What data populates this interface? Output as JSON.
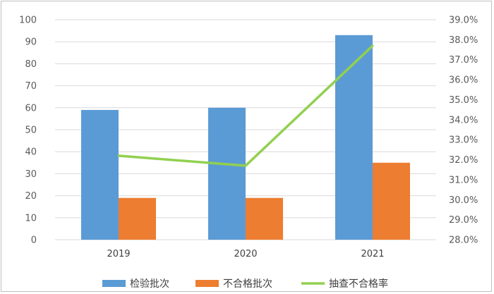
{
  "chart_data": {
    "type": "bar",
    "categories": [
      "2019",
      "2020",
      "2021"
    ],
    "series": [
      {
        "name": "检验批次",
        "kind": "bar",
        "axis": "left",
        "color": "#5b9bd5",
        "values": [
          59,
          60,
          93
        ]
      },
      {
        "name": "不合格批次",
        "kind": "bar",
        "axis": "left",
        "color": "#ed7d31",
        "values": [
          19,
          19,
          35
        ]
      },
      {
        "name": "抽查不合格率",
        "kind": "line",
        "axis": "right",
        "color": "#92d050",
        "values": [
          32.2,
          31.7,
          37.7
        ]
      }
    ],
    "y_left": {
      "min": 0,
      "max": 100,
      "step": 10,
      "ticks": [
        "0",
        "10",
        "20",
        "30",
        "40",
        "50",
        "60",
        "70",
        "80",
        "90",
        "100"
      ]
    },
    "y_right": {
      "min": 28.0,
      "max": 39.0,
      "step": 1.0,
      "ticks": [
        "28.0%",
        "29.0%",
        "30.0%",
        "31.0%",
        "32.0%",
        "33.0%",
        "34.0%",
        "35.0%",
        "36.0%",
        "37.0%",
        "38.0%",
        "39.0%"
      ]
    },
    "grid": true,
    "legend": "bottom"
  }
}
